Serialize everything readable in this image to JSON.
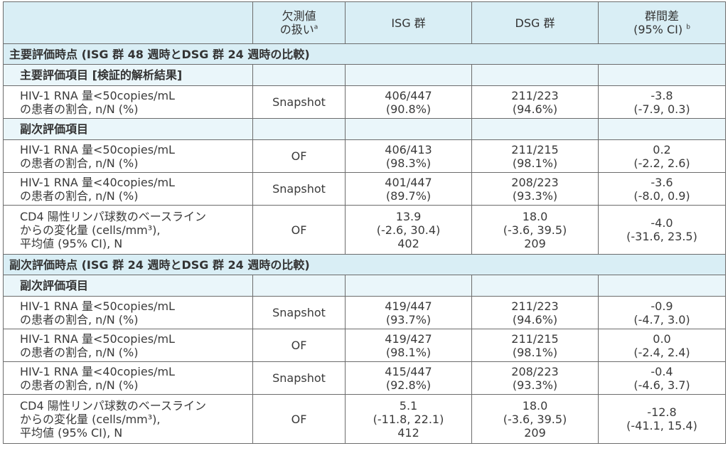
{
  "header": {
    "col_method_1": "欠測値",
    "col_method_2": "の扱い",
    "col_method_sup": "a",
    "col_isg": "ISG 群",
    "col_dsg": "DSG 群",
    "col_diff_1": "群間差",
    "col_diff_2": "(95% CI)",
    "col_diff_sup": "b"
  },
  "sections": [
    {
      "title": "主要評価時点 (ISG 群 48 週時とDSG 群 24 週時の比較)",
      "groups": [
        {
          "subtitle": "主要評価項目 [検証的解析結果]",
          "rows": [
            {
              "desc": [
                "HIV-1 RNA 量<50copies/mL",
                "の患者の割合, n/N (%)"
              ],
              "method": "Snapshot",
              "isg": [
                "406/447",
                "(90.8%)"
              ],
              "dsg": [
                "211/223",
                "(94.6%)"
              ],
              "diff": [
                "-3.8",
                "(-7.9, 0.3)"
              ]
            }
          ]
        },
        {
          "subtitle": "副次評価項目",
          "rows": [
            {
              "desc": [
                "HIV-1 RNA 量<50copies/mL",
                "の患者の割合, n/N (%)"
              ],
              "method": "OF",
              "isg": [
                "406/413",
                "(98.3%)"
              ],
              "dsg": [
                "211/215",
                "(98.1%)"
              ],
              "diff": [
                "0.2",
                "(-2.2, 2.6)"
              ]
            },
            {
              "desc": [
                "HIV-1 RNA 量<40copies/mL",
                "の患者の割合, n/N (%)"
              ],
              "method": "Snapshot",
              "isg": [
                "401/447",
                "(89.7%)"
              ],
              "dsg": [
                "208/223",
                "(93.3%)"
              ],
              "diff": [
                "-3.6",
                "(-8.0, 0.9)"
              ]
            },
            {
              "desc": [
                "CD4 陽性リンパ球数のベースライン",
                "からの変化量 (cells/mm³),",
                "平均値 (95% CI), N"
              ],
              "method": "OF",
              "isg": [
                "13.9",
                "(-2.6, 30.4)",
                "402"
              ],
              "dsg": [
                "18.0",
                "(-3.6, 39.5)",
                "209"
              ],
              "diff": [
                "-4.0",
                "(-31.6, 23.5)"
              ]
            }
          ]
        }
      ]
    },
    {
      "title": "副次評価時点 (ISG 群 24 週時とDSG 群 24 週時の比較)",
      "groups": [
        {
          "subtitle": "副次評価項目",
          "rows": [
            {
              "desc": [
                "HIV-1 RNA 量<50copies/mL",
                "の患者の割合, n/N (%)"
              ],
              "method": "Snapshot",
              "isg": [
                "419/447",
                "(93.7%)"
              ],
              "dsg": [
                "211/223",
                "(94.6%)"
              ],
              "diff": [
                "-0.9",
                "(-4.7, 3.0)"
              ]
            },
            {
              "desc": [
                "HIV-1 RNA 量<50copies/mL",
                "の患者の割合, n/N (%)"
              ],
              "method": "OF",
              "isg": [
                "419/427",
                "(98.1%)"
              ],
              "dsg": [
                "211/215",
                "(98.1%)"
              ],
              "diff": [
                "0.0",
                "(-2.4, 2.4)"
              ]
            },
            {
              "desc": [
                "HIV-1 RNA 量<40copies/mL",
                "の患者の割合, n/N (%)"
              ],
              "method": "Snapshot",
              "isg": [
                "415/447",
                "(92.8%)"
              ],
              "dsg": [
                "208/223",
                "(93.3%)"
              ],
              "diff": [
                "-0.4",
                "(-4.6, 3.7)"
              ]
            },
            {
              "desc": [
                "CD4 陽性リンパ球数のベースライン",
                "からの変化量 (cells/mm³),",
                "平均値 (95% CI), N"
              ],
              "method": "OF",
              "isg": [
                "5.1",
                "(-11.8, 22.1)",
                "412"
              ],
              "dsg": [
                "18.0",
                "(-3.6, 39.5)",
                "209"
              ],
              "diff": [
                "-12.8",
                "(-41.1, 15.4)"
              ]
            }
          ]
        }
      ]
    }
  ]
}
